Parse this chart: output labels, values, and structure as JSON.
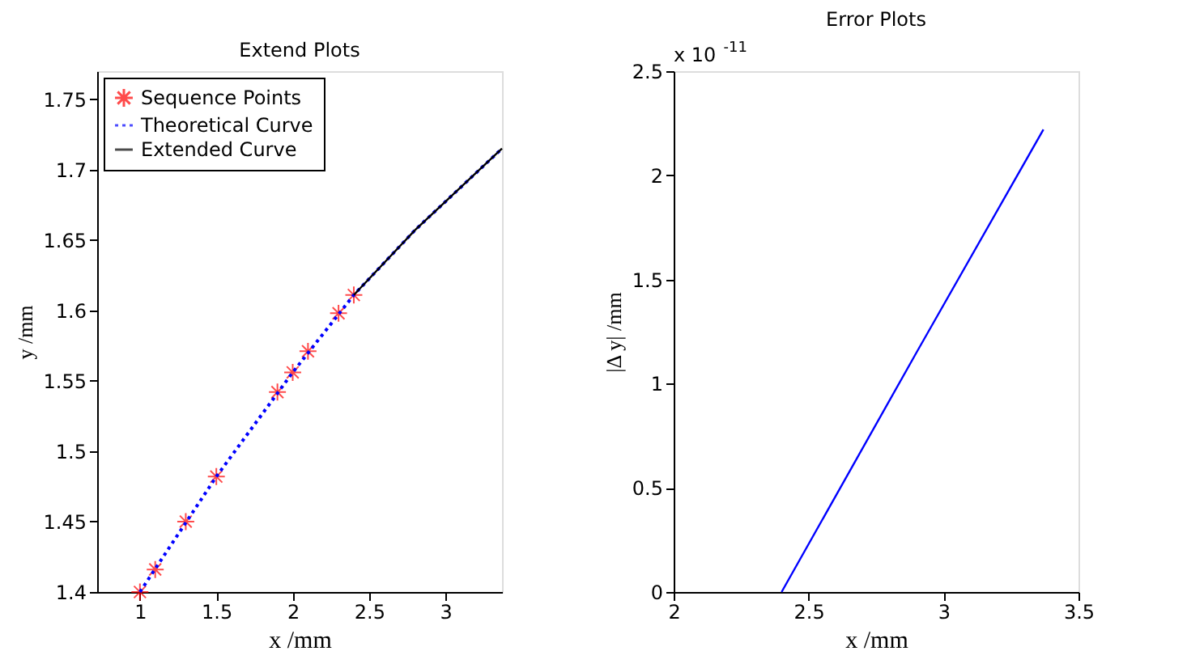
{
  "chart_data": [
    {
      "type": "line",
      "title": "Extend Plots",
      "xlabel": "x /mm",
      "ylabel": "y /mm",
      "xlim": [
        0.72,
        3.37
      ],
      "ylim": [
        1.4,
        1.77
      ],
      "xticks": [
        1,
        1.5,
        2,
        2.5,
        3
      ],
      "yticks": [
        1.4,
        1.45,
        1.5,
        1.55,
        1.6,
        1.65,
        1.7,
        1.75
      ],
      "legend": "top left",
      "grid": false,
      "series": [
        {
          "name": "Sequence Points",
          "type": "scatter",
          "marker": "cross",
          "color": "#ff0000",
          "x": [
            1,
            1.1,
            1.3,
            1.5,
            1.9,
            2.0,
            2.1,
            2.3,
            2.4
          ],
          "values": [
            1.4,
            1.416,
            1.45,
            1.482,
            1.542,
            1.556,
            1.571,
            1.598,
            1.611
          ]
        },
        {
          "name": "Theoretical Curve",
          "line_style": "dotted",
          "color": "#0000ff",
          "x": [
            1,
            1.5,
            2,
            2.4,
            2.8,
            3.37
          ],
          "values": [
            1.4,
            1.482,
            1.556,
            1.611,
            1.657,
            1.715
          ]
        },
        {
          "name": "Extended Curve",
          "line_style": "solid",
          "color": "#000000",
          "x": [
            2.4,
            2.8,
            3.37
          ],
          "values": [
            1.611,
            1.657,
            1.715
          ]
        }
      ]
    },
    {
      "type": "line",
      "title": "Error Plots",
      "xlabel": "x /mm",
      "ylabel": "|Δ y| /mm",
      "annotations": [
        "x 10$^{-11}$"
      ],
      "xlim": [
        2,
        3.5
      ],
      "ylim": [
        0,
        2.5
      ],
      "xticks": [
        2,
        2.5,
        3,
        3.5
      ],
      "yticks": [
        0,
        0.5,
        1,
        1.5,
        2,
        2.5
      ],
      "grid": false,
      "series": [
        {
          "line_style": "solid",
          "color": "#0000ff",
          "x": [
            2.4,
            2.9,
            3.37
          ],
          "values": [
            0,
            1.15,
            2.22
          ]
        }
      ]
    }
  ]
}
